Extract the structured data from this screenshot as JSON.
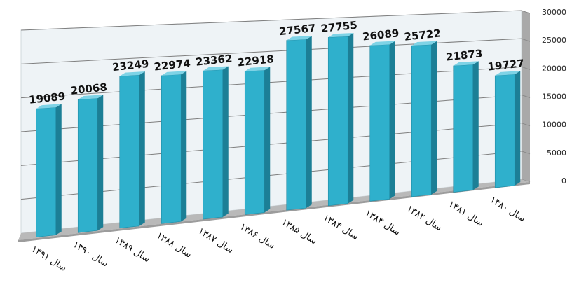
{
  "chart_data": {
    "type": "bar",
    "title": "",
    "xlabel": "",
    "ylabel": "",
    "categories": [
      "سال ۱۳۹۱",
      "سال ۱۳۹۰",
      "سال ۱۳۸۹",
      "سال ۱۳۸۸",
      "سال ۱۳۸۷",
      "سال ۱۳۸۶",
      "سال ۱۳۸۵",
      "سال ۱۳۸۴",
      "سال ۱۳۸۳",
      "سال ۱۳۸۲",
      "سال ۱۳۸۱",
      "سال ۱۳۸۰"
    ],
    "values": [
      19089,
      20068,
      23249,
      22974,
      23362,
      22918,
      27567,
      27755,
      26089,
      25722,
      21873,
      19727
    ],
    "value_labels": [
      "19089",
      "20068",
      "23249",
      "22974",
      "23362",
      "22918",
      "27567",
      "27755",
      "26089",
      "25722",
      "21873",
      "19727"
    ],
    "ylim": [
      0,
      30000
    ],
    "y_ticks": [
      "0",
      "5000",
      "10000",
      "15000",
      "20000",
      "25000",
      "30000"
    ],
    "y_tick_values": [
      0,
      5000,
      10000,
      15000,
      20000,
      25000,
      30000
    ],
    "grid": true,
    "style": "3d-column",
    "colors": {
      "bar_front": "#2fb0cc",
      "bar_side": "#1c7f96",
      "bar_top": "#7ed3e6",
      "wall": "#eef3f6",
      "floor": "#b9b9b9",
      "gridline": "#7f7f7f",
      "axis": "#888888"
    }
  }
}
